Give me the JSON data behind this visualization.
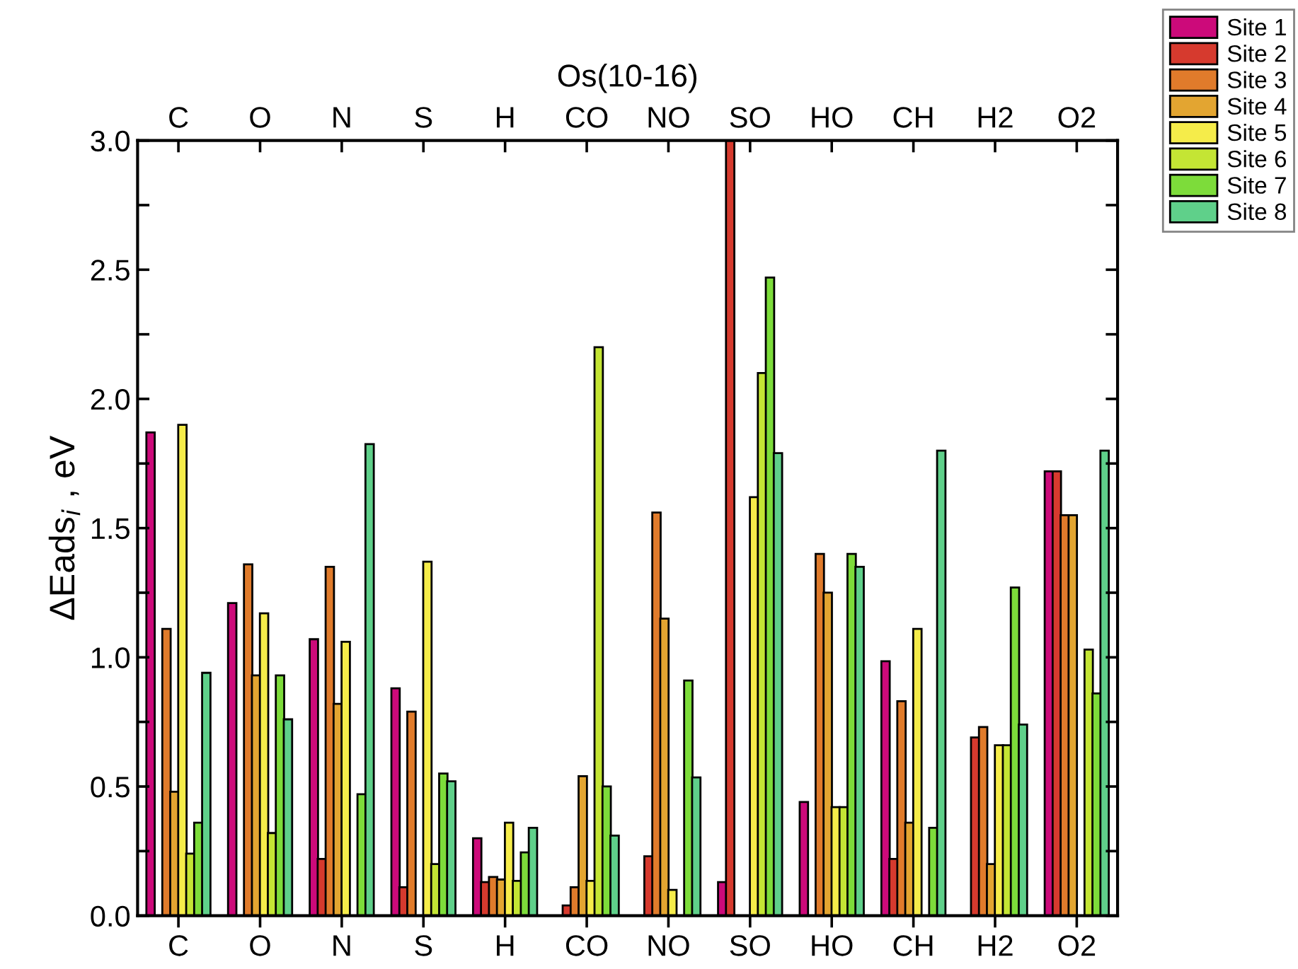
{
  "chart_data": {
    "type": "bar",
    "title": "Os(10-16)",
    "ylabel": "ΔEads$_{i}$ , eV",
    "categories": [
      "C",
      "O",
      "N",
      "S",
      "H",
      "CO",
      "NO",
      "SO",
      "HO",
      "CH",
      "H2",
      "O2"
    ],
    "series": [
      {
        "name": "Site 1",
        "color": "#cc0a7a",
        "values": [
          1.87,
          1.21,
          1.07,
          0.88,
          0.3,
          null,
          null,
          0.13,
          0.44,
          0.985,
          null,
          1.72
        ]
      },
      {
        "name": "Site 2",
        "color": "#d63a2e",
        "values": [
          null,
          null,
          0.22,
          0.11,
          0.13,
          0.04,
          0.23,
          3.0,
          null,
          0.22,
          0.69,
          1.72
        ]
      },
      {
        "name": "Site 3",
        "color": "#e07b2b",
        "values": [
          1.11,
          1.36,
          1.35,
          0.79,
          0.15,
          0.11,
          1.56,
          null,
          1.4,
          0.83,
          0.73,
          1.55
        ]
      },
      {
        "name": "Site 4",
        "color": "#e3a531",
        "values": [
          0.48,
          0.93,
          0.82,
          null,
          0.14,
          0.54,
          1.15,
          null,
          1.25,
          0.36,
          0.2,
          1.55
        ]
      },
      {
        "name": "Site 5",
        "color": "#f5ec4a",
        "values": [
          1.9,
          1.17,
          1.06,
          1.37,
          0.36,
          0.135,
          0.1,
          1.62,
          0.42,
          1.11,
          0.66,
          null
        ]
      },
      {
        "name": "Site 6",
        "color": "#c4e534",
        "values": [
          0.24,
          0.32,
          null,
          0.2,
          0.135,
          2.2,
          null,
          2.1,
          0.42,
          null,
          0.66,
          1.03
        ]
      },
      {
        "name": "Site 7",
        "color": "#7ddc3a",
        "values": [
          0.36,
          0.93,
          0.47,
          0.55,
          0.245,
          0.5,
          0.91,
          2.47,
          1.4,
          0.34,
          1.27,
          0.86
        ]
      },
      {
        "name": "Site 8",
        "color": "#5fd08a",
        "values": [
          0.94,
          0.76,
          1.825,
          0.52,
          0.34,
          0.31,
          0.535,
          1.79,
          1.35,
          1.8,
          0.74,
          1.8
        ]
      }
    ],
    "ylim": [
      0,
      3.0
    ],
    "yticks": [
      {
        "value": 0,
        "label": "0.0"
      },
      {
        "value": 0.25,
        "label": null
      },
      0.5,
      {
        "value": 0.75,
        "label": null
      },
      {
        "value": 1,
        "label": "1.0"
      },
      {
        "value": 1.25,
        "label": null
      },
      1.5,
      {
        "value": 1.75,
        "label": null
      },
      {
        "value": 2,
        "label": "2.0"
      },
      {
        "value": 2.25,
        "label": null
      },
      2.5,
      {
        "value": 2.75,
        "label": null
      },
      {
        "value": 3,
        "label": "3.0"
      }
    ],
    "grid": false,
    "legend": "top right"
  }
}
